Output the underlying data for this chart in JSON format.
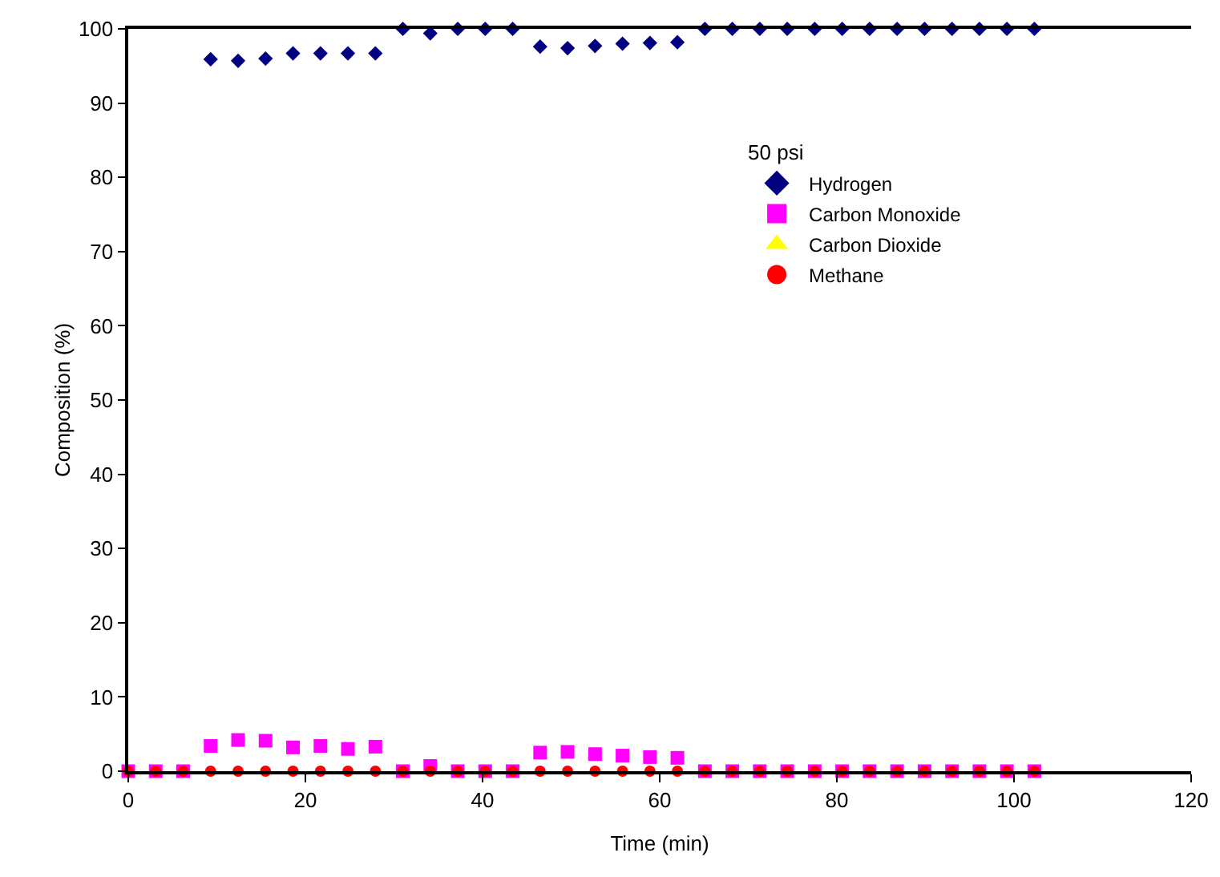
{
  "chart_data": {
    "type": "scatter",
    "xlabel": "Time (min)",
    "ylabel": "Composition (%)",
    "legend_title": "50 psi",
    "x": [
      0,
      3.1,
      6.2,
      9.3,
      12.4,
      15.5,
      18.6,
      21.7,
      24.8,
      27.9,
      31,
      34.1,
      37.2,
      40.3,
      43.4,
      46.5,
      49.6,
      52.7,
      55.8,
      58.9,
      62,
      65.1,
      68.2,
      71.3,
      74.4,
      77.5,
      80.6,
      83.7,
      86.8,
      89.9,
      93,
      96.1,
      99.2,
      102.3
    ],
    "series": [
      {
        "name": "Hydrogen",
        "color": "#000080",
        "marker": "diamond",
        "values": [
          null,
          null,
          null,
          95.9,
          95.7,
          96,
          96.7,
          96.7,
          96.7,
          96.7,
          100,
          99.4,
          100,
          100,
          100,
          97.6,
          97.4,
          97.7,
          98,
          98.1,
          98.2,
          100,
          100,
          100,
          100,
          100,
          100,
          100,
          100,
          100,
          100,
          100,
          100,
          100
        ]
      },
      {
        "name": "Carbon Monoxide",
        "color": "#ff00ff",
        "marker": "square",
        "values": [
          0,
          0,
          0,
          3.4,
          4.2,
          4.1,
          3.2,
          3.4,
          3,
          3.3,
          0,
          0.7,
          0,
          0,
          0,
          2.5,
          2.6,
          2.3,
          2.1,
          1.9,
          1.8,
          0,
          0,
          0,
          0,
          0,
          0,
          0,
          0,
          0,
          0,
          0,
          0,
          0
        ]
      },
      {
        "name": "Carbon Dioxide",
        "color": "#ffff00",
        "marker": "triangle",
        "values": [
          null,
          null,
          null,
          null,
          null,
          null,
          null,
          null,
          null,
          null,
          null,
          null,
          null,
          null,
          null,
          null,
          null,
          null,
          null,
          null,
          null,
          null,
          null,
          null,
          null,
          null,
          null,
          null,
          null,
          null,
          null,
          null,
          null,
          null
        ]
      },
      {
        "name": "Methane",
        "color": "#ff0000",
        "marker": "circle",
        "values": [
          0,
          0,
          0,
          0,
          0,
          0,
          0,
          0,
          0,
          0,
          0,
          0,
          0,
          0,
          0,
          0,
          0,
          0,
          0,
          0,
          0,
          0,
          0,
          0,
          0,
          0,
          0,
          0,
          0,
          0,
          0,
          0,
          0,
          0
        ]
      }
    ],
    "xlim": [
      0,
      120
    ],
    "xticks": [
      0,
      20,
      40,
      60,
      80,
      100,
      120
    ],
    "ylim": [
      0,
      100
    ],
    "yticks": [
      0,
      10,
      20,
      30,
      40,
      50,
      60,
      70,
      80,
      90,
      100
    ],
    "grid": false,
    "legend": "top right"
  }
}
